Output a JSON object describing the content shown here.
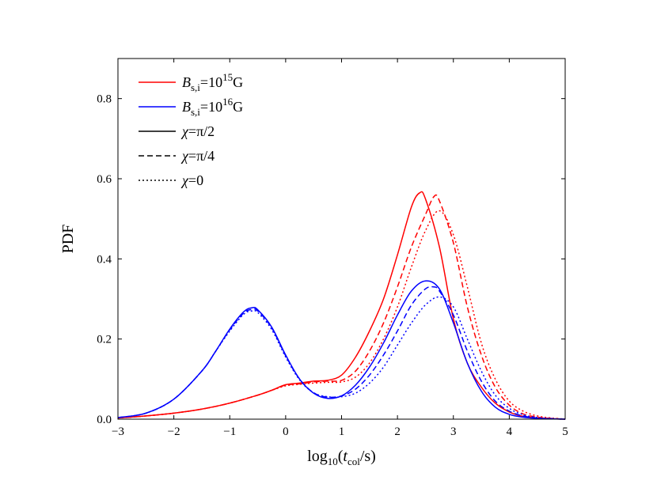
{
  "chart_data": {
    "type": "line",
    "title": "",
    "xlabel": "log10(tcol/s)",
    "xlabel_parts": {
      "pre": "log",
      "sub1": "10",
      "open": "(",
      "var": "t",
      "sub2": "col",
      "post": "/s)"
    },
    "ylabel": "PDF",
    "xlim": [
      -3,
      5
    ],
    "ylim": [
      0,
      0.9
    ],
    "grid": false,
    "xticks": [
      -3,
      -2,
      -1,
      0,
      1,
      2,
      3,
      4,
      5
    ],
    "xtick_labels": [
      "−3",
      "−2",
      "−1",
      "0",
      "1",
      "2",
      "3",
      "4",
      "5"
    ],
    "yticks": [
      0,
      0.2,
      0.4,
      0.6,
      0.8
    ],
    "ytick_labels": [
      "0.0",
      "0.2",
      "0.4",
      "0.6",
      "0.8"
    ],
    "legend_position": "top-left",
    "legend": [
      {
        "label_var": "B",
        "label_sub": "s,i",
        "label_mid": "=10",
        "label_sup": "15",
        "label_end": "G",
        "color": "#ff0000",
        "style": "solid"
      },
      {
        "label_var": "B",
        "label_sub": "s,i",
        "label_mid": "=10",
        "label_sup": "16",
        "label_end": "G",
        "color": "#0000ff",
        "style": "solid"
      },
      {
        "label_var": "χ",
        "label_sub": "",
        "label_mid": "=π/2",
        "label_sup": "",
        "label_end": "",
        "color": "#000000",
        "style": "solid"
      },
      {
        "label_var": "χ",
        "label_sub": "",
        "label_mid": "=π/4",
        "label_sup": "",
        "label_end": "",
        "color": "#000000",
        "style": "dashed"
      },
      {
        "label_var": "χ",
        "label_sub": "",
        "label_mid": "=0",
        "label_sup": "",
        "label_end": "",
        "color": "#000000",
        "style": "dotted"
      }
    ],
    "series": [
      {
        "color": "#ff0000",
        "style": "solid",
        "x": [
          -3,
          -2.5,
          -2,
          -1.5,
          -1,
          -0.5,
          -0.25,
          0,
          0.25,
          0.5,
          0.75,
          1,
          1.25,
          1.5,
          1.75,
          2,
          2.25,
          2.4,
          2.5,
          2.75,
          3,
          3.25,
          3.5,
          3.75,
          4,
          4.25,
          4.5,
          4.75,
          5
        ],
        "y": [
          0.003,
          0.008,
          0.015,
          0.025,
          0.04,
          0.06,
          0.072,
          0.086,
          0.09,
          0.095,
          0.097,
          0.11,
          0.155,
          0.22,
          0.3,
          0.41,
          0.53,
          0.565,
          0.55,
          0.43,
          0.25,
          0.14,
          0.08,
          0.04,
          0.018,
          0.007,
          0.003,
          0.001,
          0
        ]
      },
      {
        "color": "#ff0000",
        "style": "dashed",
        "x": [
          -3,
          -2.5,
          -2,
          -1.5,
          -1,
          -0.5,
          -0.25,
          0,
          0.25,
          0.5,
          0.75,
          1,
          1.25,
          1.5,
          1.75,
          2,
          2.25,
          2.5,
          2.65,
          2.75,
          3,
          3.25,
          3.5,
          3.75,
          4,
          4.25,
          4.5,
          4.75,
          5
        ],
        "y": [
          0.003,
          0.008,
          0.015,
          0.025,
          0.04,
          0.06,
          0.072,
          0.085,
          0.088,
          0.093,
          0.095,
          0.097,
          0.12,
          0.17,
          0.24,
          0.33,
          0.43,
          0.51,
          0.555,
          0.545,
          0.44,
          0.28,
          0.16,
          0.08,
          0.035,
          0.013,
          0.005,
          0.002,
          0
        ]
      },
      {
        "color": "#ff0000",
        "style": "dotted",
        "x": [
          -3,
          -2.5,
          -2,
          -1.5,
          -1,
          -0.5,
          -0.25,
          0,
          0.25,
          0.5,
          0.75,
          1,
          1.25,
          1.5,
          1.75,
          2,
          2.25,
          2.5,
          2.75,
          3,
          3.25,
          3.5,
          3.75,
          4,
          4.25,
          4.5,
          4.75,
          5
        ],
        "y": [
          0.003,
          0.008,
          0.015,
          0.025,
          0.04,
          0.06,
          0.072,
          0.083,
          0.087,
          0.09,
          0.092,
          0.093,
          0.105,
          0.14,
          0.2,
          0.28,
          0.38,
          0.47,
          0.52,
          0.46,
          0.33,
          0.19,
          0.1,
          0.045,
          0.02,
          0.008,
          0.003,
          0
        ]
      },
      {
        "color": "#0000ff",
        "style": "solid",
        "x": [
          -3,
          -2.5,
          -2,
          -1.5,
          -1.25,
          -1,
          -0.75,
          -0.6,
          -0.5,
          -0.25,
          0,
          0.25,
          0.5,
          0.75,
          1,
          1.25,
          1.5,
          1.75,
          2,
          2.25,
          2.5,
          2.75,
          3,
          3.25,
          3.5,
          3.75,
          4,
          4.25,
          4.5,
          4.75,
          5
        ],
        "y": [
          0.004,
          0.015,
          0.05,
          0.12,
          0.17,
          0.225,
          0.268,
          0.278,
          0.273,
          0.23,
          0.16,
          0.1,
          0.065,
          0.052,
          0.058,
          0.085,
          0.13,
          0.19,
          0.26,
          0.32,
          0.345,
          0.325,
          0.24,
          0.14,
          0.07,
          0.03,
          0.012,
          0.005,
          0.002,
          0.001,
          0
        ]
      },
      {
        "color": "#0000ff",
        "style": "dashed",
        "x": [
          -3,
          -2.5,
          -2,
          -1.5,
          -1.25,
          -1,
          -0.75,
          -0.6,
          -0.5,
          -0.25,
          0,
          0.25,
          0.5,
          0.75,
          1,
          1.25,
          1.5,
          1.75,
          2,
          2.25,
          2.5,
          2.65,
          2.75,
          3,
          3.25,
          3.5,
          3.75,
          4,
          4.25,
          4.5,
          4.75,
          5
        ],
        "y": [
          0.004,
          0.015,
          0.05,
          0.12,
          0.17,
          0.223,
          0.265,
          0.274,
          0.27,
          0.228,
          0.158,
          0.1,
          0.066,
          0.055,
          0.058,
          0.075,
          0.11,
          0.16,
          0.22,
          0.285,
          0.325,
          0.33,
          0.32,
          0.26,
          0.17,
          0.095,
          0.045,
          0.02,
          0.008,
          0.003,
          0.001,
          0
        ]
      },
      {
        "color": "#0000ff",
        "style": "dotted",
        "x": [
          -3,
          -2.5,
          -2,
          -1.5,
          -1.25,
          -1,
          -0.75,
          -0.6,
          -0.5,
          -0.25,
          0,
          0.25,
          0.5,
          0.75,
          1,
          1.25,
          1.5,
          1.75,
          2,
          2.25,
          2.5,
          2.75,
          3,
          3.25,
          3.5,
          3.75,
          4,
          4.25,
          4.5,
          4.75,
          5
        ],
        "y": [
          0.004,
          0.015,
          0.05,
          0.12,
          0.17,
          0.22,
          0.262,
          0.27,
          0.266,
          0.224,
          0.155,
          0.098,
          0.066,
          0.056,
          0.056,
          0.065,
          0.09,
          0.13,
          0.185,
          0.24,
          0.285,
          0.305,
          0.28,
          0.2,
          0.12,
          0.06,
          0.027,
          0.011,
          0.004,
          0.001,
          0
        ]
      }
    ]
  }
}
